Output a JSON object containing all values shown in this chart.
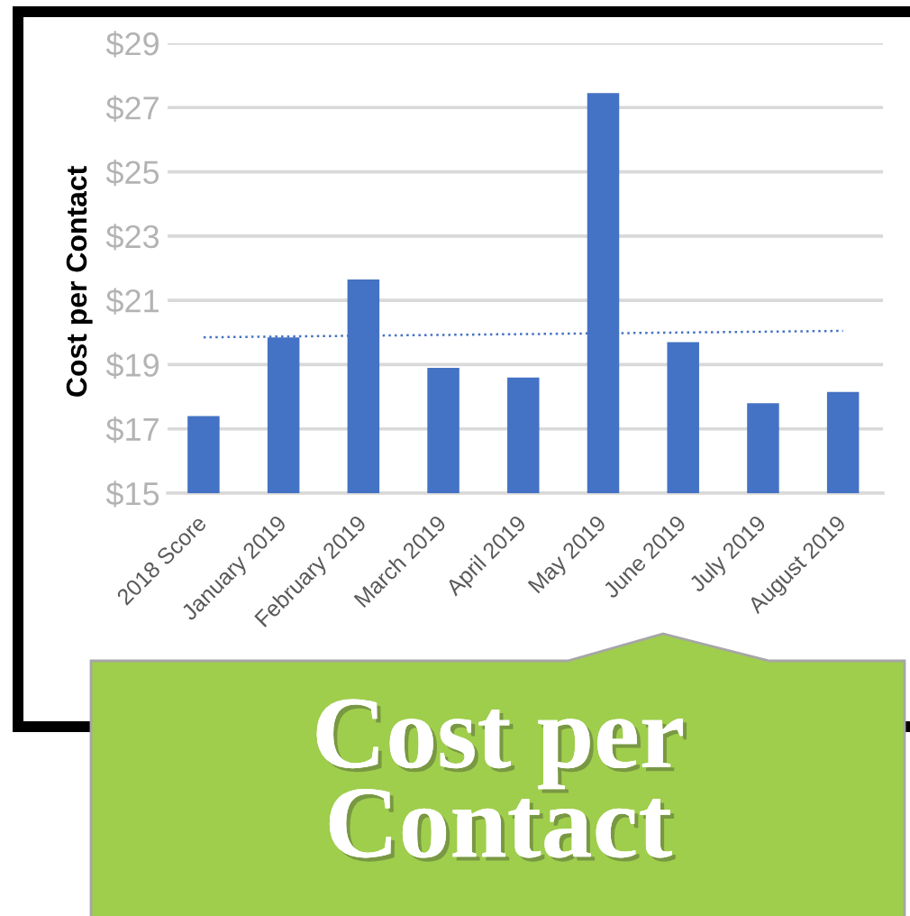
{
  "chart_data": {
    "type": "bar",
    "title": "Cost per Contact",
    "ylabel": "Cost per Contact",
    "categories": [
      "2018 Score",
      "January 2019",
      "February 2019",
      "March 2019",
      "April 2019",
      "May 2019",
      "June 2019",
      "July 2019",
      "August 2019"
    ],
    "series": [
      {
        "color": "#4472c4",
        "values": [
          17.4,
          19.85,
          21.65,
          18.9,
          18.6,
          27.45,
          19.7,
          17.8,
          18.15
        ]
      },
      {
        "type": "line",
        "color": "#4472c4",
        "line_style": "dotted",
        "x": [
          "2018 Score",
          "August 2019"
        ],
        "values": [
          19.85,
          20.05
        ]
      }
    ],
    "ylim": [
      15,
      29
    ],
    "yticks": [
      {
        "value": 15,
        "label": "$15"
      },
      {
        "value": 17,
        "label": "$17"
      },
      {
        "value": 19,
        "label": "$19"
      },
      {
        "value": 21,
        "label": "$21"
      },
      {
        "value": 23,
        "label": "$23"
      },
      {
        "value": 25,
        "label": "$25"
      },
      {
        "value": 27,
        "label": "$27"
      },
      {
        "value": 29,
        "label": "$29"
      }
    ],
    "grid": "y"
  }
}
